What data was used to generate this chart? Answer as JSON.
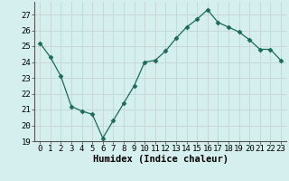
{
  "x": [
    0,
    1,
    2,
    3,
    4,
    5,
    6,
    7,
    8,
    9,
    10,
    11,
    12,
    13,
    14,
    15,
    16,
    17,
    18,
    19,
    20,
    21,
    22,
    23
  ],
  "y": [
    25.2,
    24.3,
    23.1,
    21.2,
    20.9,
    20.7,
    19.2,
    20.3,
    21.4,
    22.5,
    24.0,
    24.1,
    24.7,
    25.5,
    26.2,
    26.7,
    27.3,
    26.5,
    26.2,
    25.9,
    25.4,
    24.8,
    24.8,
    24.1
  ],
  "line_color": "#1a6b5a",
  "marker": "D",
  "marker_size": 2.5,
  "bg_color": "#d4efed",
  "grid_color": "#c8d8d6",
  "xlabel": "Humidex (Indice chaleur)",
  "ylim": [
    19,
    27.8
  ],
  "yticks": [
    19,
    20,
    21,
    22,
    23,
    24,
    25,
    26,
    27
  ],
  "xlim": [
    -0.5,
    23.5
  ],
  "xticks": [
    0,
    1,
    2,
    3,
    4,
    5,
    6,
    7,
    8,
    9,
    10,
    11,
    12,
    13,
    14,
    15,
    16,
    17,
    18,
    19,
    20,
    21,
    22,
    23
  ],
  "label_fontsize": 7.5,
  "tick_fontsize": 6.5
}
